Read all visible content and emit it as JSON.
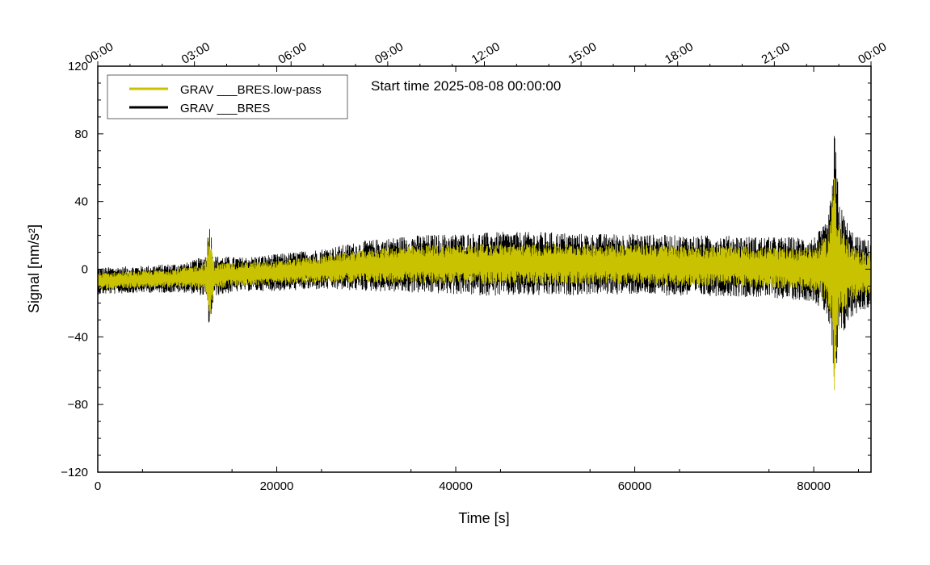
{
  "chart_data": {
    "type": "line",
    "xlabel": "Time [s]",
    "ylabel": "Signal [nm/s²]",
    "xlim": [
      0,
      86400
    ],
    "ylim": [
      -120,
      120
    ],
    "x_ticks": [
      0,
      20000,
      40000,
      60000,
      80000
    ],
    "x_tick_labels": [
      "0",
      "20000",
      "40000",
      "60000",
      "80000"
    ],
    "y_ticks": [
      -120,
      -80,
      -40,
      0,
      40,
      80,
      120
    ],
    "y_tick_labels": [
      "−120",
      "−80",
      "−40",
      "0",
      "40",
      "80",
      "120"
    ],
    "top_axis_ticks": [
      0,
      10800,
      21600,
      32400,
      43200,
      54000,
      64800,
      75600,
      86400
    ],
    "top_axis_labels": [
      "00:00",
      "03:00",
      "06:00",
      "09:00",
      "12:00",
      "15:00",
      "18:00",
      "21:00",
      "00:00"
    ],
    "annotation": "Start time 2025-08-08 00:00:00",
    "legend_position": "top-left",
    "grid": false,
    "series": [
      {
        "name": "GRAV ___BRES",
        "color": "#000000",
        "envelope": {
          "x": [
            0,
            5000,
            10000,
            12000,
            12500,
            13000,
            16000,
            20000,
            25000,
            30000,
            35000,
            40000,
            45000,
            50000,
            55000,
            60000,
            65000,
            70000,
            75000,
            80000,
            81500,
            82000,
            82300,
            82600,
            83000,
            84000,
            85000,
            86400
          ],
          "center": [
            -7,
            -6,
            -5,
            -4,
            -4,
            -4,
            -3,
            -2,
            0,
            2,
            3,
            3,
            3,
            3,
            3,
            3,
            2,
            2,
            1,
            0,
            0,
            0,
            0,
            0,
            -2,
            -3,
            -3,
            -3
          ],
          "amplitude": [
            8,
            8,
            9,
            12,
            33,
            12,
            10,
            11,
            12,
            15,
            17,
            18,
            19,
            19,
            18,
            18,
            18,
            18,
            18,
            19,
            28,
            45,
            85,
            60,
            40,
            28,
            22,
            20
          ]
        }
      },
      {
        "name": "GRAV ___BRES.low-pass",
        "color": "#c8c200",
        "envelope": {
          "x": [
            0,
            5000,
            10000,
            12000,
            12500,
            13000,
            16000,
            20000,
            25000,
            30000,
            35000,
            40000,
            45000,
            50000,
            55000,
            60000,
            65000,
            70000,
            75000,
            80000,
            81500,
            82000,
            82300,
            82600,
            83000,
            84000,
            85000,
            86400
          ],
          "center": [
            -7,
            -6,
            -5,
            -4,
            -4,
            -4,
            -3,
            -2,
            0,
            2,
            3,
            3,
            3,
            3,
            3,
            3,
            2,
            2,
            1,
            0,
            0,
            0,
            0,
            0,
            -2,
            -3,
            -3,
            -3
          ],
          "amplitude": [
            5,
            5,
            6,
            8,
            25,
            8,
            7,
            7,
            8,
            10,
            11,
            12,
            12,
            12,
            12,
            12,
            12,
            12,
            12,
            13,
            20,
            35,
            75,
            45,
            28,
            18,
            14,
            13
          ]
        }
      }
    ]
  }
}
